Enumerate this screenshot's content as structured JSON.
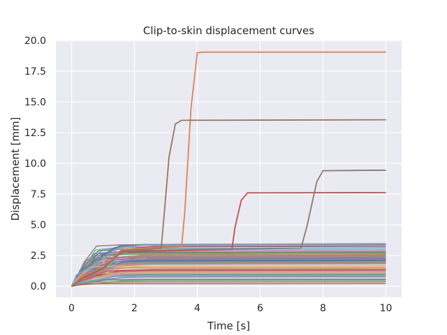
{
  "chart_data": {
    "type": "line",
    "title": "Clip-to-skin displacement curves",
    "xlabel": "Time [s]",
    "ylabel": "Displacement [mm]",
    "xlim": [
      -0.5,
      10.5
    ],
    "ylim": [
      -0.9,
      20.0
    ],
    "xticks": [
      "0",
      "2",
      "4",
      "6",
      "8",
      "10"
    ],
    "yticks": [
      "0.0",
      "2.5",
      "5.0",
      "7.5",
      "10.0",
      "12.5",
      "15.0",
      "17.5",
      "20.0"
    ],
    "grid": true,
    "background": "#eaeaf2",
    "legend": "none",
    "highlight_series": [
      {
        "color": "#dd8452",
        "x": [
          0,
          0.3,
          1.0,
          1.6,
          3.5,
          3.6,
          3.8,
          4.0,
          4.2,
          10.0
        ],
        "y": [
          0,
          0.7,
          1.5,
          3.0,
          3.2,
          6.0,
          14.5,
          19.0,
          19.05,
          19.05
        ]
      },
      {
        "color": "#937860",
        "x": [
          0,
          0.3,
          1.0,
          1.6,
          2.85,
          2.95,
          3.1,
          3.3,
          3.5,
          10.0
        ],
        "y": [
          0,
          0.6,
          1.4,
          2.9,
          3.1,
          6.0,
          10.5,
          13.2,
          13.5,
          13.55
        ]
      },
      {
        "color": "#c44e52",
        "x": [
          0,
          0.3,
          1.0,
          1.6,
          5.1,
          5.2,
          5.4,
          5.6,
          10.0
        ],
        "y": [
          0,
          0.6,
          1.5,
          2.8,
          3.0,
          4.8,
          7.0,
          7.6,
          7.62
        ]
      },
      {
        "color": "#8c7b6a",
        "x": [
          0,
          0.3,
          1.0,
          1.6,
          7.3,
          7.5,
          7.8,
          8.0,
          10.0
        ],
        "y": [
          0,
          0.5,
          1.4,
          2.9,
          3.1,
          5.0,
          8.5,
          9.4,
          9.45
        ]
      }
    ],
    "bundle": {
      "count": 70,
      "plateau_range": [
        0.2,
        3.5
      ],
      "rise_end_range": [
        0.5,
        1.8
      ],
      "x_end": 10.0,
      "colors": [
        "#4c72b0",
        "#dd8452",
        "#55a868",
        "#c44e52",
        "#8172b3",
        "#937860",
        "#da8bc3",
        "#8c8c8c",
        "#ccb974",
        "#64b5cd"
      ]
    }
  }
}
